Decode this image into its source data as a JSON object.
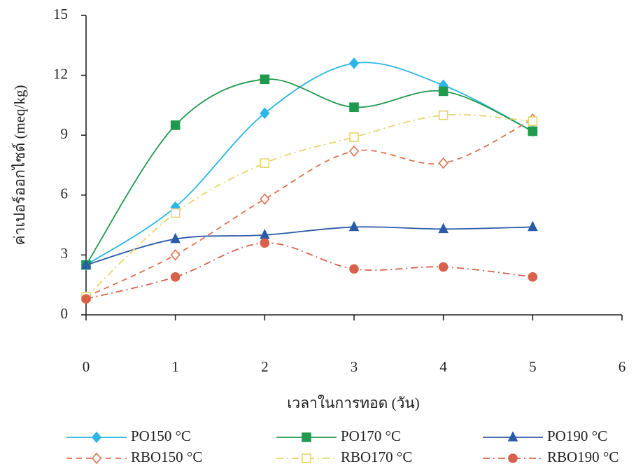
{
  "chart_data": {
    "type": "line",
    "x_label": "เวลาในการทอด (วัน)",
    "y_label": "ค่าเปอร์ออกไซด์ (meq/kg)",
    "x": [
      0,
      1,
      2,
      3,
      4,
      5
    ],
    "xlim": [
      0,
      6
    ],
    "xticks": [
      0,
      1,
      2,
      3,
      4,
      5,
      6
    ],
    "ylim": [
      0,
      15
    ],
    "yticks": [
      0,
      3,
      6,
      9,
      12,
      15
    ],
    "series": [
      {
        "name": "PO150 °C",
        "color": "#2bb5e8",
        "marker": "diamond",
        "filled": true,
        "dash": "solid",
        "values": [
          2.5,
          5.4,
          10.1,
          12.6,
          11.5,
          9.2
        ]
      },
      {
        "name": "PO170 °C",
        "color": "#1f9a4c",
        "marker": "square",
        "filled": true,
        "dash": "solid",
        "values": [
          2.5,
          9.5,
          11.8,
          10.4,
          11.2,
          9.2
        ]
      },
      {
        "name": "PO190 °C",
        "color": "#2b5aa8",
        "marker": "triangle",
        "filled": true,
        "dash": "solid",
        "values": [
          2.5,
          3.8,
          4.0,
          4.4,
          4.3,
          4.4
        ]
      },
      {
        "name": "RBO150 °C",
        "color": "#e07050",
        "marker": "diamond",
        "filled": false,
        "dash": "dash",
        "values": [
          0.9,
          3.0,
          5.8,
          8.2,
          7.6,
          9.8
        ]
      },
      {
        "name": "RBO170 °C",
        "color": "#e6d46a",
        "marker": "square",
        "filled": false,
        "dash": "dashdot",
        "values": [
          0.9,
          5.1,
          7.6,
          8.9,
          10.0,
          9.7
        ]
      },
      {
        "name": "RBO190 °C",
        "color": "#d9604a",
        "marker": "circle",
        "filled": true,
        "dash": "dashdot",
        "values": [
          0.8,
          1.9,
          3.6,
          2.3,
          2.4,
          1.9
        ]
      }
    ]
  }
}
